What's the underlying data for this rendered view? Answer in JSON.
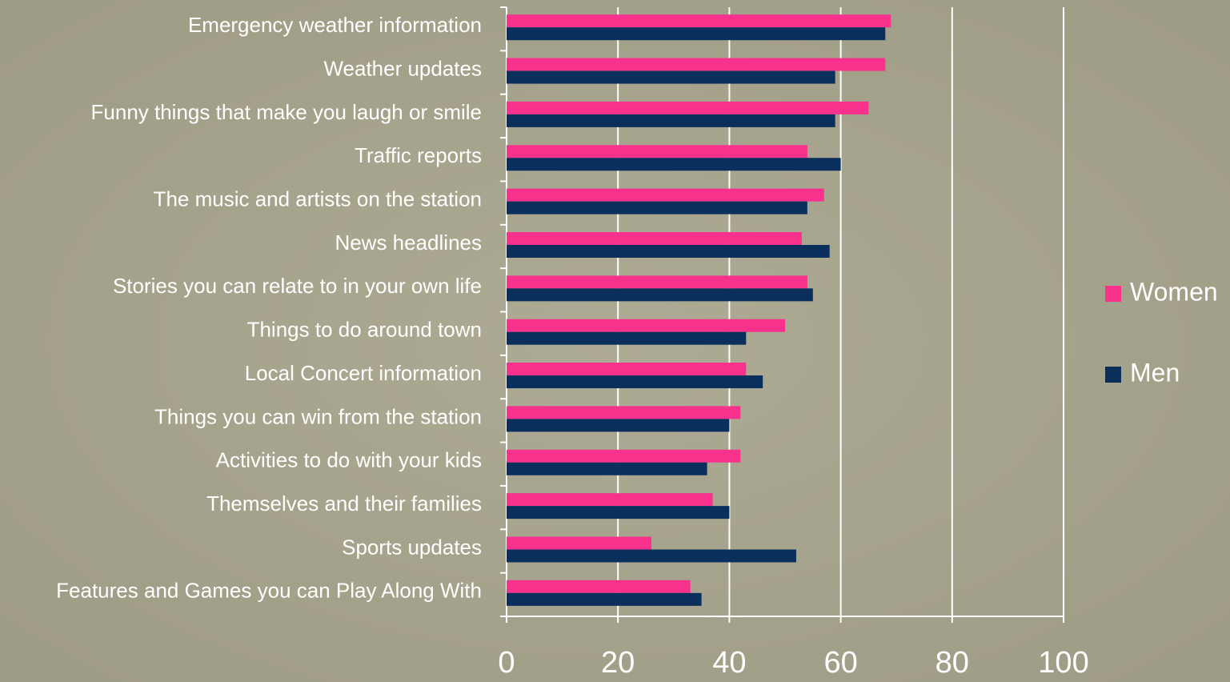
{
  "chart_data": {
    "type": "bar",
    "orientation": "horizontal",
    "categories": [
      "Emergency weather information",
      "Weather updates",
      "Funny things that make you laugh or smile",
      "Traffic reports",
      "The music and artists on the station",
      "News headlines",
      "Stories you can relate to in your own life",
      "Things to do around town",
      "Local Concert information",
      "Things you can win from the station",
      "Activities to do with your kids",
      "Themselves and their families",
      "Sports updates",
      "Features and Games you can Play Along With"
    ],
    "series": [
      {
        "name": "Women",
        "color": "#f7318c",
        "values": [
          69,
          68,
          65,
          54,
          57,
          53,
          54,
          50,
          43,
          42,
          42,
          37,
          26,
          33
        ]
      },
      {
        "name": "Men",
        "color": "#0b2f5c",
        "values": [
          68,
          59,
          59,
          60,
          54,
          58,
          55,
          43,
          46,
          40,
          36,
          40,
          52,
          35
        ]
      }
    ],
    "xlim": [
      0,
      100
    ],
    "xticks": [
      0,
      20,
      40,
      60,
      80,
      100
    ],
    "grid": true,
    "legend": "right"
  }
}
